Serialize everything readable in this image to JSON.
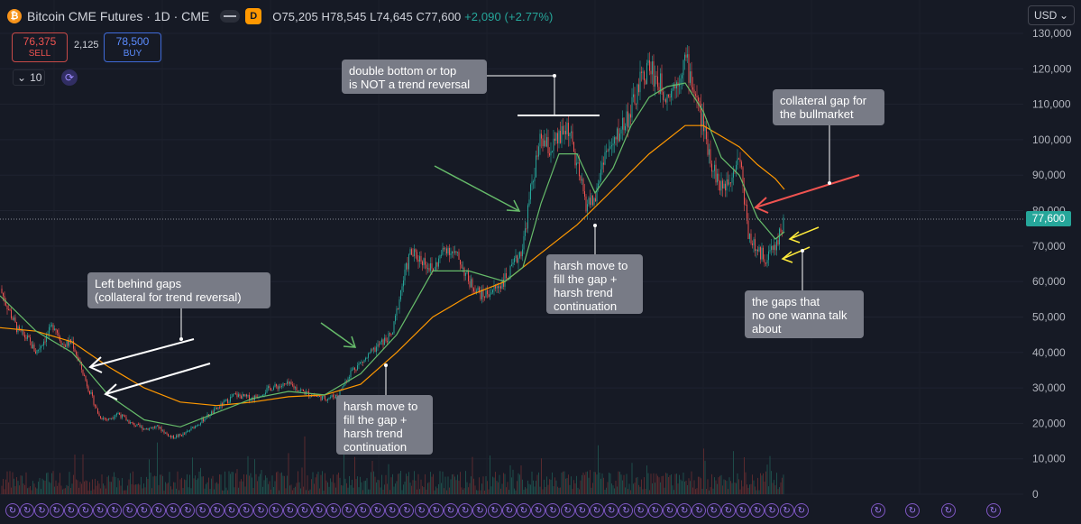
{
  "header": {
    "logo_glyph": "₿",
    "title": "Bitcoin CME Futures · 1D · CME",
    "badge": "D",
    "ohlc": "O75,205 H78,545 L74,645 C77,600",
    "change": "+2,090 (+2.77%)"
  },
  "trade": {
    "sell_price": "76,375",
    "sell_label": "SELL",
    "spread": "2,125",
    "buy_price": "78,500",
    "buy_label": "BUY",
    "quantity": "10"
  },
  "currency": "USD",
  "last_price": "77,600",
  "annotations": {
    "left_gaps": "Left behind gaps\n(collateral for trend reversal)",
    "double_bottom": "double bottom or top\nis NOT a trend reversal",
    "collateral_bull": "collateral gap for\nthe bullmarket",
    "harsh_1": "harsh move to\nfill the gap +\nharsh trend\ncontinuation",
    "harsh_2": "harsh move to\nfill the gap +\nharsh trend\ncontinuation",
    "no_one": "the gaps that\nno one wanna talk\nabout"
  },
  "colors": {
    "background": "#161a25",
    "up": "#26a69a",
    "down": "#ef5350",
    "ma_fast": "#66bb6a",
    "ma_slow": "#ff9800",
    "annotation_box": "#787b86"
  },
  "event_icon": "sync-event-icon",
  "chart_data": {
    "type": "candlestick",
    "ylim": [
      0,
      130000
    ],
    "y_ticks": [
      0,
      10000,
      20000,
      30000,
      40000,
      50000,
      60000,
      70000,
      80000,
      90000,
      100000,
      110000,
      120000,
      130000
    ],
    "y_tick_labels": [
      "0",
      "10,000",
      "20,000",
      "30,000",
      "40,000",
      "50,000",
      "60,000",
      "70,000",
      "80,000",
      "90,000",
      "100,000",
      "110,000",
      "120,000",
      "130,000"
    ],
    "grid": true,
    "last_price_line": 77600,
    "price_path": [
      [
        0,
        58000
      ],
      [
        10,
        52000
      ],
      [
        20,
        46000
      ],
      [
        30,
        44000
      ],
      [
        40,
        40000
      ],
      [
        50,
        44000
      ],
      [
        60,
        48000
      ],
      [
        70,
        42000
      ],
      [
        80,
        43000
      ],
      [
        95,
        32000
      ],
      [
        110,
        22000
      ],
      [
        120,
        21000
      ],
      [
        130,
        23000
      ],
      [
        145,
        20000
      ],
      [
        160,
        18500
      ],
      [
        175,
        19000
      ],
      [
        190,
        16000
      ],
      [
        205,
        17000
      ],
      [
        220,
        20000
      ],
      [
        240,
        24000
      ],
      [
        260,
        28000
      ],
      [
        280,
        27000
      ],
      [
        300,
        30000
      ],
      [
        320,
        31000
      ],
      [
        340,
        28500
      ],
      [
        360,
        27000
      ],
      [
        375,
        28000
      ],
      [
        390,
        35000
      ],
      [
        405,
        38000
      ],
      [
        420,
        42000
      ],
      [
        435,
        45000
      ],
      [
        445,
        58000
      ],
      [
        455,
        68000
      ],
      [
        470,
        66000
      ],
      [
        480,
        63000
      ],
      [
        495,
        70000
      ],
      [
        510,
        66000
      ],
      [
        520,
        60000
      ],
      [
        535,
        56000
      ],
      [
        550,
        58000
      ],
      [
        565,
        62000
      ],
      [
        580,
        70000
      ],
      [
        590,
        88000
      ],
      [
        600,
        100000
      ],
      [
        610,
        97000
      ],
      [
        620,
        100000
      ],
      [
        630,
        104000
      ],
      [
        640,
        92000
      ],
      [
        650,
        82000
      ],
      [
        660,
        83000
      ],
      [
        670,
        96000
      ],
      [
        680,
        98000
      ],
      [
        690,
        104000
      ],
      [
        700,
        108000
      ],
      [
        710,
        116000
      ],
      [
        720,
        121000
      ],
      [
        730,
        116000
      ],
      [
        740,
        113000
      ],
      [
        750,
        116000
      ],
      [
        760,
        123000
      ],
      [
        770,
        114000
      ],
      [
        780,
        104000
      ],
      [
        790,
        93000
      ],
      [
        800,
        86000
      ],
      [
        810,
        90000
      ],
      [
        820,
        96000
      ],
      [
        830,
        74000
      ],
      [
        840,
        68000
      ],
      [
        850,
        67000
      ],
      [
        860,
        70000
      ],
      [
        870,
        77600
      ]
    ],
    "ma_fast": [
      [
        0,
        56000
      ],
      [
        40,
        46000
      ],
      [
        80,
        40000
      ],
      [
        120,
        28000
      ],
      [
        160,
        21000
      ],
      [
        200,
        19000
      ],
      [
        240,
        23000
      ],
      [
        280,
        27000
      ],
      [
        320,
        29000
      ],
      [
        360,
        28000
      ],
      [
        400,
        34000
      ],
      [
        440,
        45000
      ],
      [
        480,
        63000
      ],
      [
        520,
        63000
      ],
      [
        560,
        60000
      ],
      [
        580,
        64000
      ],
      [
        600,
        82000
      ],
      [
        620,
        96000
      ],
      [
        640,
        96000
      ],
      [
        660,
        85000
      ],
      [
        680,
        92000
      ],
      [
        700,
        104000
      ],
      [
        720,
        112000
      ],
      [
        740,
        115000
      ],
      [
        760,
        116000
      ],
      [
        780,
        108000
      ],
      [
        800,
        95000
      ],
      [
        820,
        90000
      ],
      [
        840,
        78000
      ],
      [
        860,
        72000
      ],
      [
        870,
        74000
      ]
    ],
    "ma_slow": [
      [
        0,
        47000
      ],
      [
        40,
        46000
      ],
      [
        80,
        43000
      ],
      [
        120,
        36000
      ],
      [
        160,
        30000
      ],
      [
        200,
        26000
      ],
      [
        240,
        25000
      ],
      [
        280,
        26000
      ],
      [
        320,
        27500
      ],
      [
        360,
        28000
      ],
      [
        400,
        31000
      ],
      [
        440,
        40000
      ],
      [
        480,
        50000
      ],
      [
        520,
        56000
      ],
      [
        560,
        60000
      ],
      [
        600,
        68000
      ],
      [
        640,
        76000
      ],
      [
        680,
        86000
      ],
      [
        720,
        96000
      ],
      [
        760,
        104000
      ],
      [
        780,
        104000
      ],
      [
        800,
        101000
      ],
      [
        820,
        98000
      ],
      [
        840,
        93000
      ],
      [
        860,
        89000
      ],
      [
        870,
        86000
      ]
    ]
  }
}
